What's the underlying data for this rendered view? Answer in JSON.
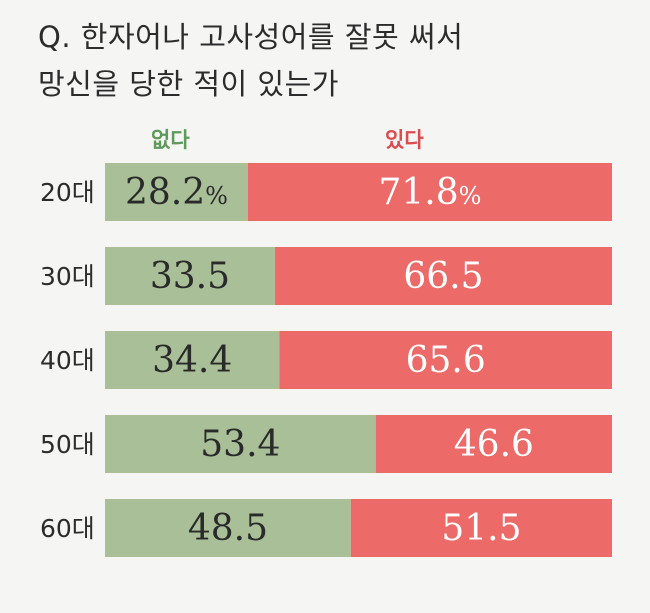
{
  "title_lines": [
    "Q. 한자어나 고사성어를 잘못 써서",
    "망신을 당한 적이 있는가"
  ],
  "colors": {
    "no": "#a8bf98",
    "yes": "#ec6a68",
    "no_text": "#5e9a5c",
    "yes_text": "#dc4c4f"
  },
  "chart_data": {
    "type": "bar",
    "orientation": "horizontal",
    "stacked": true,
    "categories": [
      "20대",
      "30대",
      "40대",
      "50대",
      "60대"
    ],
    "series": [
      {
        "name": "없다",
        "values": [
          28.2,
          33.5,
          34.4,
          53.4,
          48.5
        ]
      },
      {
        "name": "있다",
        "values": [
          71.8,
          66.5,
          65.6,
          46.6,
          51.5
        ]
      }
    ],
    "data_labels": [
      [
        "28.2%",
        "33.5",
        "34.4",
        "53.4",
        "48.5"
      ],
      [
        "71.8%",
        "66.5",
        "65.6",
        "46.6",
        "51.5"
      ]
    ],
    "xlim": [
      0,
      100
    ],
    "legend": "top"
  }
}
